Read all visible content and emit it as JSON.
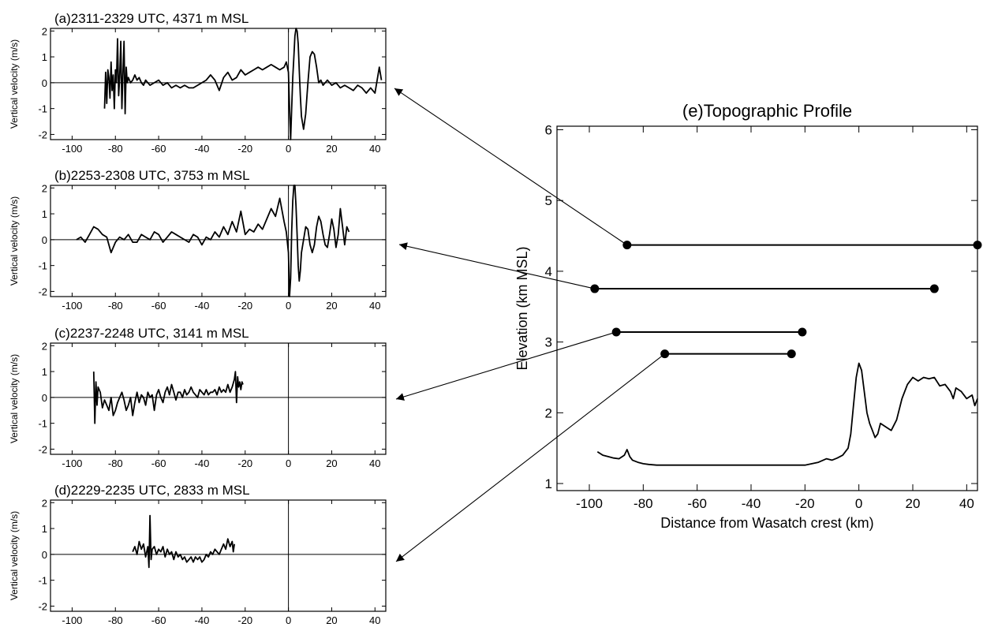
{
  "chart_data": [
    {
      "type": "line",
      "title": "(a)2311-2329 UTC, 4371 m MSL",
      "ylabel": "Vertical velocity (m/s)",
      "xlim": [
        -110,
        45
      ],
      "ylim": [
        -2.2,
        2.1
      ],
      "xticks": [
        -100,
        -80,
        -60,
        -40,
        -20,
        0,
        20,
        40
      ],
      "yticks": [
        -2,
        -1,
        0,
        1,
        2
      ],
      "series": [
        {
          "x": [
            -85,
            -84.5,
            -84,
            -83.5,
            -83,
            -82.5,
            -82,
            -81.5,
            -81,
            -80.5,
            -80,
            -79.5,
            -79,
            -78.5,
            -78,
            -77.5,
            -77,
            -76.5,
            -76,
            -75.5,
            -75,
            -74.5,
            -74,
            -73,
            -72,
            -71,
            -70,
            -69,
            -68,
            -67,
            -66,
            -65,
            -64,
            -62,
            -60,
            -58,
            -56,
            -54,
            -52,
            -50,
            -48,
            -46,
            -44,
            -42,
            -40,
            -38,
            -36,
            -34,
            -32,
            -30,
            -28,
            -26,
            -24,
            -22,
            -20,
            -18,
            -16,
            -14,
            -12,
            -10,
            -8,
            -6,
            -4,
            -2,
            -1,
            0,
            0.5,
            1,
            1.5,
            2,
            2.5,
            3,
            3.5,
            4,
            4.5,
            5,
            5.5,
            6,
            7,
            8,
            9,
            10,
            11,
            12,
            13,
            14,
            15,
            16,
            17,
            18,
            20,
            22,
            24,
            26,
            28,
            30,
            32,
            34,
            36,
            38,
            40,
            42,
            43
          ],
          "y": [
            -1.0,
            0.4,
            -0.8,
            0.5,
            0.2,
            -0.6,
            0.8,
            -0.3,
            0.3,
            -1.0,
            0.5,
            0.0,
            1.7,
            -0.5,
            0.2,
            1.6,
            -1.0,
            0.4,
            1.6,
            -1.2,
            0.6,
            0.0,
            0.2,
            0.0,
            0.1,
            0.3,
            0.1,
            0.2,
            0.0,
            -0.1,
            0.1,
            0.0,
            -0.1,
            0.0,
            0.1,
            -0.1,
            0.0,
            -0.2,
            -0.1,
            -0.2,
            -0.1,
            -0.2,
            -0.2,
            -0.1,
            0.0,
            0.1,
            0.3,
            0.1,
            -0.3,
            0.2,
            0.4,
            0.1,
            0.2,
            0.5,
            0.3,
            0.4,
            0.5,
            0.6,
            0.5,
            0.6,
            0.7,
            0.6,
            0.5,
            0.6,
            0.8,
            0.4,
            -1.0,
            -2.2,
            -1.0,
            0.2,
            1.0,
            1.8,
            2.2,
            2.0,
            1.5,
            0.5,
            -0.5,
            -1.3,
            -1.8,
            -1.2,
            0.0,
            1.0,
            1.2,
            1.1,
            0.6,
            0.0,
            0.1,
            -0.1,
            0.0,
            0.1,
            -0.1,
            0.0,
            -0.2,
            -0.1,
            -0.2,
            -0.3,
            -0.1,
            -0.2,
            -0.4,
            -0.2,
            -0.4,
            0.6,
            0.1
          ]
        }
      ]
    },
    {
      "type": "line",
      "title": "(b)2253-2308 UTC, 3753 m MSL",
      "ylabel": "Vertical velocity (m/s)",
      "xlim": [
        -110,
        45
      ],
      "ylim": [
        -2.2,
        2.1
      ],
      "xticks": [
        -100,
        -80,
        -60,
        -40,
        -20,
        0,
        20,
        40
      ],
      "yticks": [
        -2,
        -1,
        0,
        1,
        2
      ],
      "series": [
        {
          "x": [
            -98,
            -96,
            -94,
            -92,
            -90,
            -88,
            -86,
            -84,
            -82,
            -80,
            -78,
            -76,
            -74,
            -72,
            -70,
            -68,
            -66,
            -64,
            -62,
            -60,
            -58,
            -56,
            -54,
            -52,
            -50,
            -48,
            -46,
            -44,
            -42,
            -40,
            -38,
            -36,
            -34,
            -32,
            -30,
            -28,
            -26,
            -24,
            -22,
            -20,
            -18,
            -16,
            -14,
            -12,
            -10,
            -8,
            -6,
            -4,
            -2,
            -1,
            0,
            0.5,
            1,
            1.5,
            2,
            2.5,
            3,
            3.5,
            4,
            4.5,
            5,
            5.5,
            6,
            7,
            8,
            9,
            10,
            11,
            12,
            13,
            14,
            15,
            16,
            17,
            18,
            19,
            20,
            21,
            22,
            23,
            24,
            25,
            26,
            27,
            28
          ],
          "y": [
            0.0,
            0.1,
            -0.1,
            0.2,
            0.5,
            0.4,
            0.2,
            0.1,
            -0.5,
            -0.1,
            0.1,
            0.0,
            0.2,
            -0.1,
            -0.1,
            0.2,
            0.1,
            0.0,
            0.3,
            0.2,
            -0.1,
            0.1,
            0.3,
            0.2,
            0.1,
            0.0,
            -0.1,
            0.2,
            0.1,
            -0.2,
            0.1,
            0.0,
            0.3,
            0.1,
            0.5,
            0.2,
            0.7,
            0.3,
            1.1,
            0.2,
            0.4,
            0.3,
            0.6,
            0.4,
            0.8,
            1.2,
            0.9,
            1.6,
            0.7,
            0.3,
            -0.5,
            -2.2,
            -1.5,
            0.3,
            1.5,
            2.2,
            2.1,
            1.3,
            0.2,
            -1.0,
            -1.6,
            -1.2,
            -0.5,
            0.0,
            0.5,
            0.4,
            -0.2,
            -0.5,
            -0.2,
            0.5,
            0.9,
            0.7,
            0.2,
            -0.2,
            -0.3,
            0.2,
            0.8,
            0.4,
            -0.3,
            0.2,
            1.2,
            0.5,
            -0.2,
            0.5,
            0.3
          ]
        }
      ]
    },
    {
      "type": "line",
      "title": "(c)2237-2248 UTC, 3141 m MSL",
      "ylabel": "Vertical velocity (m/s)",
      "xlim": [
        -110,
        45
      ],
      "ylim": [
        -2.2,
        2.1
      ],
      "xticks": [
        -100,
        -80,
        -60,
        -40,
        -20,
        0,
        20,
        40
      ],
      "yticks": [
        -2,
        -1,
        0,
        1,
        2
      ],
      "series": [
        {
          "x": [
            -90,
            -89.5,
            -89,
            -88.5,
            -88,
            -87,
            -86,
            -85,
            -84,
            -83,
            -82,
            -81,
            -80,
            -79,
            -78,
            -77,
            -76,
            -75,
            -74,
            -73,
            -72,
            -71,
            -70,
            -69,
            -68,
            -67,
            -66,
            -65,
            -64,
            -63,
            -62,
            -61,
            -60,
            -59,
            -58,
            -57,
            -56,
            -55,
            -54,
            -53,
            -52,
            -51,
            -50,
            -49,
            -48,
            -47,
            -46,
            -45,
            -44,
            -43,
            -42,
            -41,
            -40,
            -39,
            -38,
            -37,
            -36,
            -35,
            -34,
            -33,
            -32,
            -31,
            -30,
            -29,
            -28,
            -27,
            -26,
            -25,
            -24.5,
            -24,
            -23.5,
            -23,
            -22.5,
            -22,
            -21.5,
            -21
          ],
          "y": [
            1.0,
            -1.0,
            0.6,
            -0.3,
            0.4,
            0.2,
            -0.4,
            -0.1,
            -0.3,
            -0.5,
            0.0,
            -0.7,
            -0.5,
            -0.2,
            0.0,
            0.2,
            -0.1,
            -0.5,
            -0.3,
            0.0,
            -0.7,
            -0.2,
            0.2,
            -0.2,
            0.1,
            0.0,
            -0.3,
            0.2,
            0.0,
            0.1,
            -0.5,
            0.1,
            0.3,
            0.0,
            -0.2,
            0.2,
            0.4,
            0.1,
            0.5,
            0.2,
            -0.1,
            0.2,
            0.2,
            0.0,
            0.3,
            0.1,
            0.2,
            0.4,
            0.2,
            0.1,
            0.0,
            0.3,
            0.2,
            0.1,
            0.3,
            0.1,
            0.2,
            0.2,
            0.3,
            0.1,
            0.4,
            0.2,
            0.3,
            0.2,
            0.5,
            0.2,
            0.4,
            0.7,
            1.0,
            -0.2,
            0.8,
            0.4,
            0.6,
            0.3,
            0.6,
            0.5
          ]
        }
      ]
    },
    {
      "type": "line",
      "title": "(d)2229-2235 UTC, 2833 m MSL",
      "ylabel": "Vertical velocity (m/s)",
      "xlim": [
        -110,
        45
      ],
      "ylim": [
        -2.2,
        2.1
      ],
      "xticks": [
        -100,
        -80,
        -60,
        -40,
        -20,
        0,
        20,
        40
      ],
      "yticks": [
        -2,
        -1,
        0,
        1,
        2
      ],
      "series": [
        {
          "x": [
            -72,
            -71,
            -70,
            -69,
            -68,
            -67,
            -66,
            -65,
            -64.5,
            -64,
            -63.5,
            -63,
            -62,
            -61,
            -60,
            -59,
            -58,
            -57,
            -56,
            -55,
            -54,
            -53,
            -52,
            -51,
            -50,
            -49,
            -48,
            -47,
            -46,
            -45,
            -44,
            -43,
            -42,
            -41,
            -40,
            -39,
            -38,
            -37,
            -36,
            -35,
            -34,
            -33,
            -32,
            -31,
            -30,
            -29,
            -28,
            -27,
            -26,
            -25.5,
            -25
          ],
          "y": [
            0.1,
            0.3,
            0.0,
            0.5,
            0.2,
            0.4,
            -0.1,
            0.3,
            -0.5,
            1.5,
            -0.2,
            0.2,
            0.3,
            0.0,
            0.2,
            0.1,
            0.3,
            -0.1,
            0.2,
            0.0,
            0.1,
            -0.2,
            0.1,
            -0.1,
            0.0,
            -0.2,
            -0.1,
            -0.3,
            -0.2,
            -0.1,
            -0.3,
            -0.1,
            -0.2,
            -0.1,
            -0.3,
            -0.2,
            0.0,
            -0.1,
            0.1,
            0.0,
            0.2,
            0.1,
            0.0,
            0.2,
            0.4,
            0.2,
            0.6,
            0.3,
            0.5,
            0.1,
            0.4
          ]
        }
      ]
    },
    {
      "type": "line",
      "title": "(e)Topographic Profile",
      "xlabel": "Distance from Wasatch crest (km)",
      "ylabel": "Elevation (km MSL)",
      "xlim": [
        -112,
        44
      ],
      "ylim": [
        0.9,
        6.05
      ],
      "xticks": [
        -100,
        -80,
        -60,
        -40,
        -20,
        0,
        20,
        40
      ],
      "yticks": [
        1,
        2,
        3,
        4,
        5,
        6
      ],
      "series": [
        {
          "x": [
            -97,
            -95,
            -93,
            -91,
            -89,
            -87,
            -86,
            -85,
            -84,
            -82,
            -80,
            -78,
            -75,
            -70,
            -60,
            -50,
            -40,
            -30,
            -20,
            -15,
            -12,
            -10,
            -8,
            -6,
            -4,
            -3,
            -2,
            -1,
            0,
            1,
            2,
            3,
            4,
            5,
            6,
            7,
            8,
            10,
            12,
            14,
            16,
            18,
            20,
            22,
            24,
            26,
            28,
            30,
            32,
            34,
            35,
            36,
            38,
            40,
            42,
            43,
            44
          ],
          "y": [
            1.45,
            1.4,
            1.38,
            1.36,
            1.35,
            1.4,
            1.48,
            1.38,
            1.33,
            1.3,
            1.28,
            1.27,
            1.26,
            1.26,
            1.26,
            1.26,
            1.26,
            1.26,
            1.26,
            1.3,
            1.35,
            1.33,
            1.36,
            1.4,
            1.5,
            1.7,
            2.1,
            2.5,
            2.7,
            2.6,
            2.3,
            2.0,
            1.85,
            1.75,
            1.65,
            1.7,
            1.85,
            1.8,
            1.75,
            1.9,
            2.2,
            2.4,
            2.5,
            2.45,
            2.5,
            2.48,
            2.5,
            2.38,
            2.4,
            2.3,
            2.2,
            2.35,
            2.3,
            2.2,
            2.25,
            2.1,
            2.2
          ]
        }
      ],
      "flight_legs": [
        {
          "x": [
            -86,
            44
          ],
          "y": 4.371
        },
        {
          "x": [
            -98,
            28
          ],
          "y": 3.753
        },
        {
          "x": [
            -90,
            -21
          ],
          "y": 3.141
        },
        {
          "x": [
            -72,
            -25
          ],
          "y": 2.833
        }
      ]
    }
  ]
}
